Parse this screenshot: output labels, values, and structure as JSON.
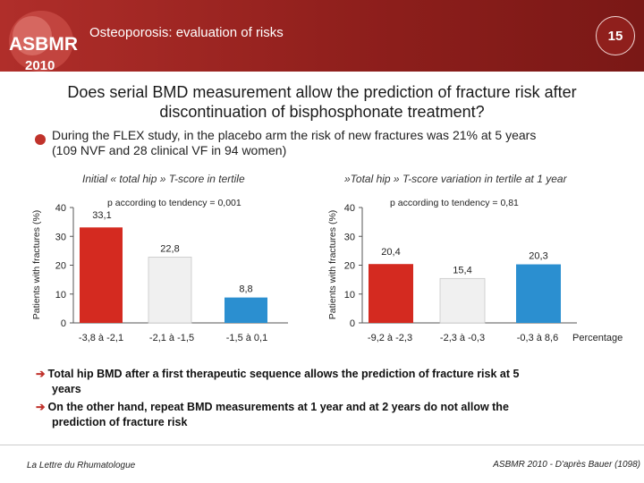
{
  "header": {
    "logo_text": "ASBMR",
    "logo_year": "2010",
    "title": "Osteoporosis: evaluation of risks",
    "slide_number": "15"
  },
  "main_title_line1": "Does serial BMD measurement allow the prediction of fracture risk after",
  "main_title_line2": "discontinuation of bisphosphonate treatment?",
  "bullet_line1": "During the FLEX study, in the placebo arm the risk of new fractures was 21% at 5 years",
  "bullet_line2": "(109 NVF and 28 clinical VF in 94 women)",
  "chart_data": [
    {
      "type": "bar",
      "title": "Initial « total hip » T-score in tertile",
      "ylabel": "Patients with fractures (%)",
      "xlabel": "",
      "ylim": [
        0,
        40
      ],
      "yticks": [
        "0",
        "10",
        "20",
        "30",
        "40"
      ],
      "grid": false,
      "annotation": "p according to tendency = 0,001",
      "categories": [
        "-3,8 à -2,1",
        "-2,1 à -1,5",
        "-1,5 à 0,1"
      ],
      "values": [
        33.1,
        22.8,
        8.8
      ],
      "labels": [
        "33,1",
        "22,8",
        "8,8"
      ],
      "colors": [
        "#d42a20",
        "#f0f0f0",
        "#2b8fd0"
      ]
    },
    {
      "type": "bar",
      "title": "»Total hip » T-score variation in tertile at 1 year",
      "ylabel": "Patients with fractures (%)",
      "xlabel": "Percentage",
      "ylim": [
        0,
        40
      ],
      "yticks": [
        "0",
        "10",
        "20",
        "30",
        "40"
      ],
      "grid": false,
      "annotation": "p according to tendency = 0,81",
      "categories": [
        "-9,2 à -2,3",
        "-2,3 à -0,3",
        "-0,3 à 8,6"
      ],
      "values": [
        20.4,
        15.4,
        20.3
      ],
      "labels": [
        "20,4",
        "15,4",
        "20,3"
      ],
      "colors": [
        "#d42a20",
        "#f0f0f0",
        "#2b8fd0"
      ]
    }
  ],
  "conclusions": [
    {
      "line1": "Total hip BMD after a first therapeutic sequence allows the prediction of  fracture risk at 5",
      "line2": "years"
    },
    {
      "line1": "On the other hand, repeat BMD measurements at 1 year and at 2 years do not allow the",
      "line2": "prediction of fracture risk"
    }
  ],
  "footer": {
    "left": "La Lettre du Rhumatologue",
    "right": "ASBMR 2010 - D'après Bauer (1098)"
  }
}
